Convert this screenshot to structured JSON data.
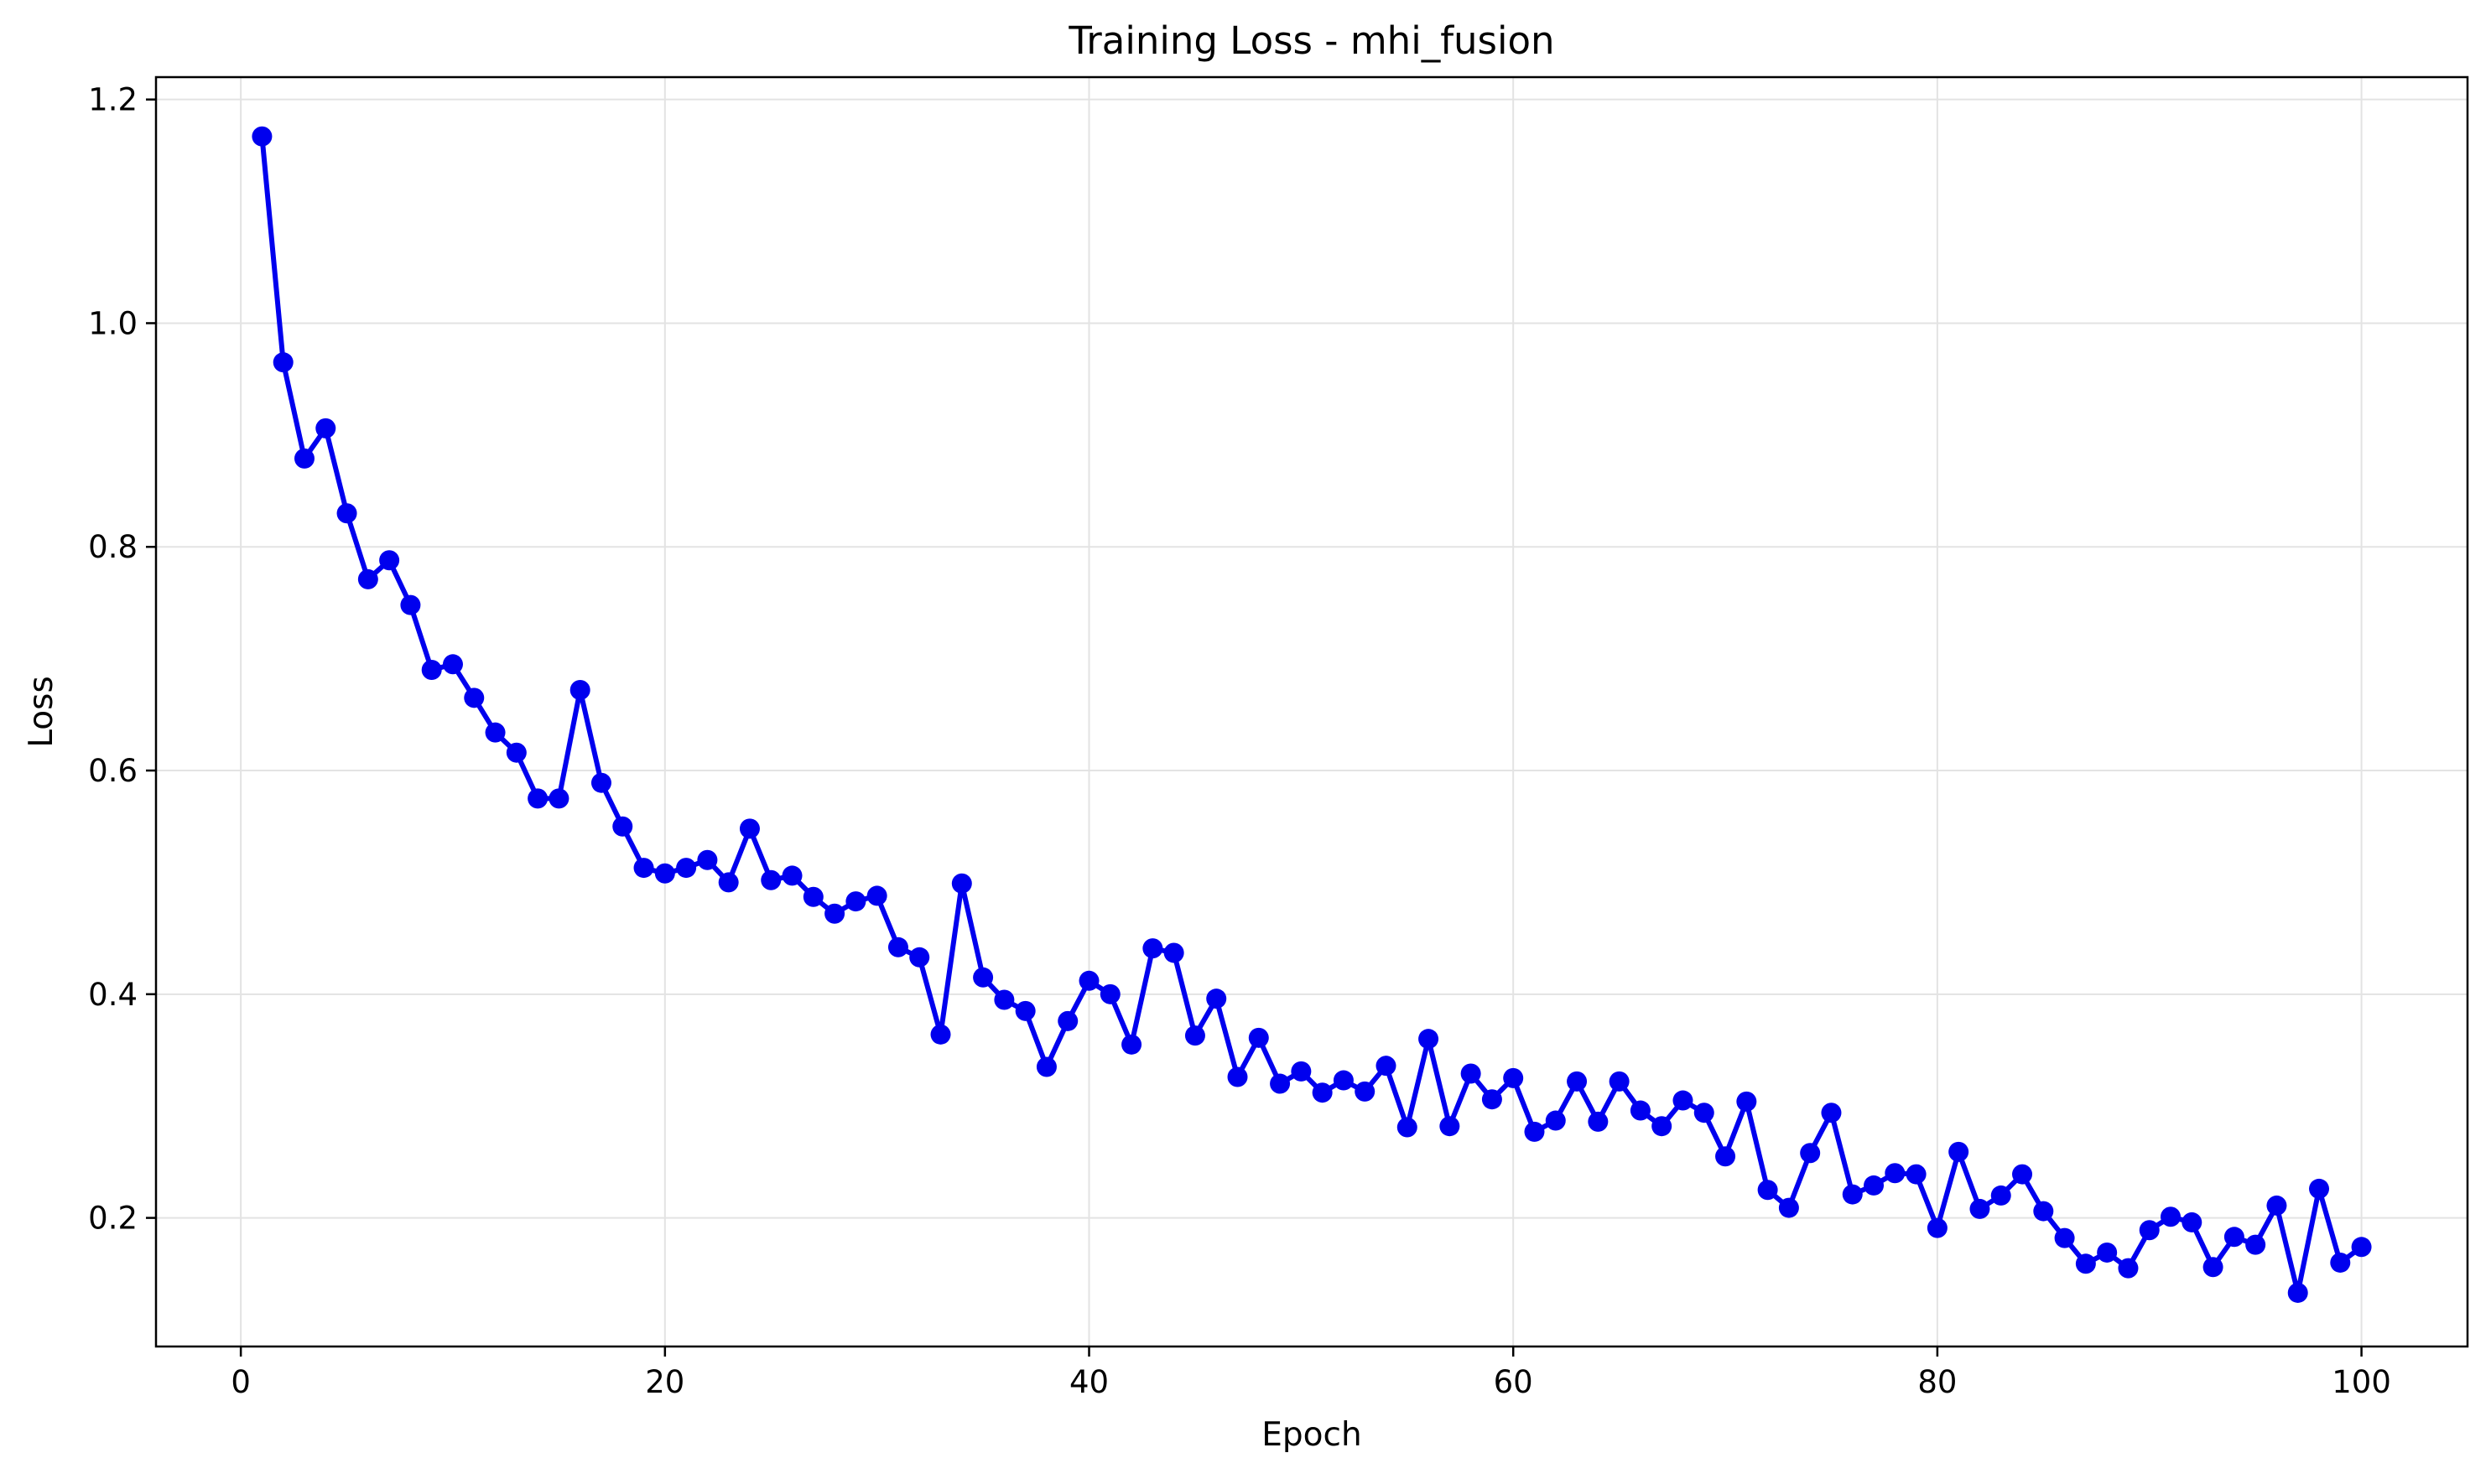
{
  "chart_data": {
    "type": "line",
    "title": "Training Loss - mhi_fusion",
    "xlabel": "Epoch",
    "ylabel": "Loss",
    "xlim": [
      -4.0,
      105.0
    ],
    "ylim": [
      0.085,
      1.22
    ],
    "xticks": [
      0,
      20,
      40,
      60,
      80,
      100
    ],
    "yticks": [
      0.2,
      0.4,
      0.6,
      0.8,
      1.0,
      1.2
    ],
    "xtick_labels": [
      "0",
      "20",
      "40",
      "60",
      "80",
      "100"
    ],
    "ytick_labels": [
      "0.2",
      "0.4",
      "0.6",
      "0.8",
      "1.0",
      "1.2"
    ],
    "grid": true,
    "line_color": "#0000ee",
    "x": [
      1,
      2,
      3,
      4,
      5,
      6,
      7,
      8,
      9,
      10,
      11,
      12,
      13,
      14,
      15,
      16,
      17,
      18,
      19,
      20,
      21,
      22,
      23,
      24,
      25,
      26,
      27,
      28,
      29,
      30,
      31,
      32,
      33,
      34,
      35,
      36,
      37,
      38,
      39,
      40,
      41,
      42,
      43,
      44,
      45,
      46,
      47,
      48,
      49,
      50,
      51,
      52,
      53,
      54,
      55,
      56,
      57,
      58,
      59,
      60,
      61,
      62,
      63,
      64,
      65,
      66,
      67,
      68,
      69,
      70,
      71,
      72,
      73,
      74,
      75,
      76,
      77,
      78,
      79,
      80,
      81,
      82,
      83,
      84,
      85,
      86,
      87,
      88,
      89,
      90,
      91,
      92,
      93,
      94,
      95,
      96,
      97,
      98,
      99,
      100
    ],
    "y": [
      1.167,
      0.965,
      0.879,
      0.906,
      0.83,
      0.771,
      0.788,
      0.748,
      0.69,
      0.695,
      0.665,
      0.634,
      0.616,
      0.575,
      0.575,
      0.672,
      0.589,
      0.55,
      0.513,
      0.508,
      0.513,
      0.52,
      0.5,
      0.548,
      0.502,
      0.506,
      0.487,
      0.472,
      0.483,
      0.488,
      0.442,
      0.433,
      0.364,
      0.499,
      0.415,
      0.395,
      0.385,
      0.335,
      0.376,
      0.412,
      0.4,
      0.355,
      0.441,
      0.437,
      0.363,
      0.396,
      0.326,
      0.361,
      0.32,
      0.331,
      0.312,
      0.323,
      0.313,
      0.336,
      0.281,
      0.36,
      0.282,
      0.329,
      0.306,
      0.325,
      0.277,
      0.287,
      0.322,
      0.286,
      0.322,
      0.296,
      0.282,
      0.305,
      0.294,
      0.255,
      0.304,
      0.225,
      0.209,
      0.258,
      0.294,
      0.221,
      0.229,
      0.24,
      0.239,
      0.191,
      0.259,
      0.208,
      0.22,
      0.239,
      0.206,
      0.182,
      0.159,
      0.169,
      0.155,
      0.189,
      0.201,
      0.196,
      0.156,
      0.183,
      0.176,
      0.211,
      0.133,
      0.226,
      0.16,
      0.174
    ]
  }
}
